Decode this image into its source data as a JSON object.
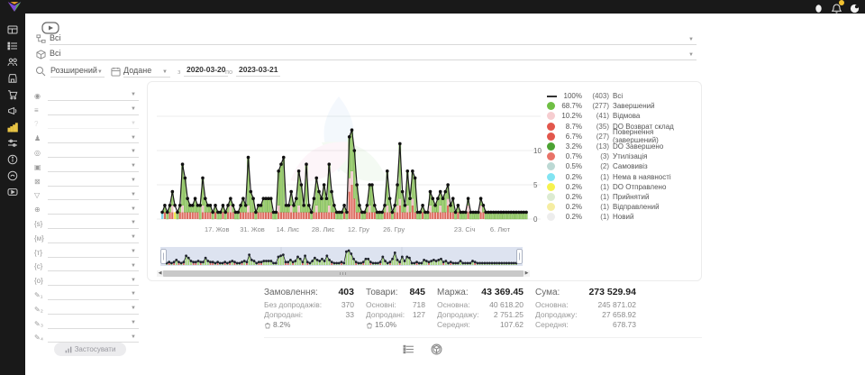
{
  "topbar": {
    "icons": [
      {
        "name": "user"
      },
      {
        "name": "notifications",
        "badge_color": "#f2c230"
      },
      {
        "name": "account"
      }
    ]
  },
  "sidebar": {
    "items": [
      {
        "name": "dashboard",
        "active": false
      },
      {
        "name": "orders",
        "active": false
      },
      {
        "name": "customers",
        "active": false
      },
      {
        "name": "shop",
        "active": false
      },
      {
        "name": "cart",
        "active": false
      },
      {
        "name": "marketing",
        "active": false
      },
      {
        "name": "analytics",
        "active": true
      },
      {
        "name": "settings",
        "active": false
      },
      {
        "name": "info",
        "active": false
      },
      {
        "name": "support",
        "active": false
      },
      {
        "name": "video",
        "active": false
      }
    ],
    "active_color": "#e8c445"
  },
  "filters": {
    "group_value": "Всі",
    "product_value": "Всі",
    "search_mode": "Розширений",
    "date_field": "Додане",
    "from_label": "з",
    "date_from": "2020-03-20",
    "to_label": "по",
    "date_to": "2023-03-21"
  },
  "side_filters": {
    "apply_label": "Застосувати",
    "rows": [
      {
        "name": "status-filter",
        "glyph": "◉",
        "muted": false
      },
      {
        "name": "stage-filter",
        "glyph": "≡",
        "muted": false
      },
      {
        "name": "help-filter",
        "glyph": "?",
        "muted": true
      },
      {
        "name": "manager-filter",
        "glyph": "♟",
        "muted": false
      },
      {
        "name": "payment-filter",
        "glyph": "◎",
        "muted": false
      },
      {
        "name": "package-filter",
        "glyph": "▣",
        "muted": false
      },
      {
        "name": "image-filter",
        "glyph": "⊠",
        "muted": false
      },
      {
        "name": "funnel-filter",
        "glyph": "▽",
        "muted": false
      },
      {
        "name": "region-filter",
        "glyph": "⊕",
        "muted": false
      },
      {
        "name": "source-s-filter",
        "glyph": "{s}",
        "muted": false
      },
      {
        "name": "source-m-filter",
        "glyph": "{м}",
        "muted": false
      },
      {
        "name": "source-t-filter",
        "glyph": "{т}",
        "muted": false
      },
      {
        "name": "source-c-filter",
        "glyph": "{с}",
        "muted": false
      },
      {
        "name": "source-o-filter",
        "glyph": "{о}",
        "muted": false
      },
      {
        "name": "custom-field-1-filter",
        "glyph": "✎₁",
        "muted": false
      },
      {
        "name": "custom-field-2-filter",
        "glyph": "✎₂",
        "muted": false
      },
      {
        "name": "custom-field-3-filter",
        "glyph": "✎₃",
        "muted": false
      },
      {
        "name": "custom-field-4-filter",
        "glyph": "✎₄",
        "muted": false
      }
    ]
  },
  "chart_data": {
    "type": "bar+line",
    "ylim": [
      0,
      15
    ],
    "yticks": [
      0,
      5,
      10
    ],
    "y_axis_side": "right",
    "grid": true,
    "legend_position": "right",
    "xticks": [
      {
        "day": 22,
        "label": "17. Жов"
      },
      {
        "day": 36,
        "label": "31. Жов"
      },
      {
        "day": 50,
        "label": "14. Лис"
      },
      {
        "day": 64,
        "label": "28. Лис"
      },
      {
        "day": 78,
        "label": "12. Гру"
      },
      {
        "day": 92,
        "label": "26. Гру"
      },
      {
        "day": 120,
        "label": "23. Січ"
      },
      {
        "day": 134,
        "label": "6. Лют"
      }
    ],
    "series_note": "line = total orders per day (Всі); stacked bars = orders by status (green Завершений, red повернення/возврат, pink Відмова)",
    "totals": [
      1,
      2,
      1,
      2,
      4,
      2,
      1,
      2,
      8,
      6,
      3,
      2,
      2,
      3,
      2,
      2,
      6,
      3,
      2,
      2,
      1,
      2,
      1,
      1,
      2,
      1,
      2,
      3,
      2,
      1,
      1,
      2,
      3,
      2,
      9,
      4,
      3,
      1,
      2,
      2,
      3,
      3,
      3,
      3,
      1,
      1,
      7,
      8,
      9,
      2,
      2,
      4,
      2,
      3,
      7,
      5,
      2,
      8,
      2,
      1,
      3,
      6,
      4,
      3,
      5,
      3,
      8,
      4,
      2,
      1,
      1,
      1,
      2,
      1,
      12,
      13,
      10,
      5,
      2,
      1,
      1,
      2,
      5,
      5,
      2,
      1,
      1,
      1,
      2,
      7,
      3,
      1,
      2,
      5,
      11,
      4,
      2,
      7,
      3,
      7,
      6,
      1,
      1,
      2,
      1,
      1,
      4,
      3,
      2,
      3,
      4,
      3,
      4,
      5,
      2,
      3,
      1,
      2,
      1,
      1,
      1,
      3,
      1,
      1,
      1,
      1,
      3,
      2,
      1,
      1,
      1,
      1,
      1,
      1,
      1,
      1,
      1,
      1,
      1,
      1,
      1,
      1,
      1,
      1,
      1
    ],
    "red": [
      0,
      1,
      0,
      1,
      1,
      1,
      0,
      1,
      1,
      1,
      1,
      1,
      1,
      1,
      1,
      0,
      1,
      1,
      1,
      1,
      0,
      1,
      0,
      0,
      1,
      0,
      1,
      1,
      1,
      0,
      0,
      1,
      1,
      1,
      1,
      1,
      1,
      0,
      1,
      1,
      1,
      1,
      1,
      1,
      0,
      0,
      1,
      1,
      1,
      1,
      1,
      1,
      1,
      1,
      1,
      1,
      1,
      1,
      1,
      0,
      1,
      1,
      1,
      1,
      1,
      1,
      1,
      1,
      1,
      0,
      0,
      0,
      1,
      0,
      4,
      5,
      3,
      1,
      1,
      0,
      0,
      1,
      1,
      1,
      1,
      0,
      0,
      0,
      1,
      1,
      1,
      0,
      1,
      1,
      2,
      1,
      1,
      1,
      1,
      2,
      1,
      0,
      0,
      1,
      0,
      0,
      1,
      1,
      1,
      1,
      1,
      1,
      1,
      2,
      1,
      1,
      0,
      1,
      0,
      0,
      0,
      1,
      0,
      0,
      0,
      0,
      1,
      1,
      0,
      0,
      0,
      0,
      0,
      0,
      0,
      0,
      0,
      0,
      0,
      0,
      0,
      0,
      0,
      0,
      0
    ],
    "pink": [
      0,
      0,
      0,
      0,
      1,
      0,
      0,
      0,
      1,
      0,
      0,
      0,
      0,
      0,
      0,
      0,
      1,
      0,
      0,
      0,
      0,
      0,
      0,
      0,
      0,
      0,
      0,
      1,
      0,
      0,
      0,
      0,
      0,
      0,
      1,
      0,
      0,
      0,
      0,
      0,
      0,
      0,
      0,
      0,
      0,
      0,
      1,
      0,
      0,
      0,
      0,
      1,
      0,
      0,
      1,
      0,
      0,
      0,
      0,
      0,
      0,
      1,
      0,
      0,
      0,
      0,
      1,
      0,
      0,
      0,
      0,
      0,
      0,
      0,
      2,
      2,
      0,
      0,
      0,
      0,
      0,
      0,
      1,
      0,
      0,
      0,
      0,
      0,
      0,
      1,
      0,
      0,
      0,
      1,
      1,
      0,
      0,
      1,
      0,
      1,
      0,
      0,
      0,
      0,
      0,
      0,
      1,
      0,
      0,
      0,
      1,
      0,
      0,
      1,
      0,
      0,
      0,
      0,
      0,
      0,
      0,
      1,
      0,
      0,
      0,
      0,
      1,
      0,
      0,
      0,
      0,
      0,
      0,
      0,
      0,
      0,
      0,
      0,
      0,
      0,
      0,
      0,
      0,
      0,
      0
    ],
    "special_bars": [
      {
        "day": 0,
        "color": "#7fd8e8"
      },
      {
        "day": 5,
        "color": "#f4e84b"
      }
    ],
    "colors": {
      "bar_green": "#a3d375",
      "bar_green_stroke": "#69a845",
      "bar_red": "#dd6b5f",
      "bar_pink": "#f2c6c9",
      "line": "#1c1c1c",
      "grid": "#ededed",
      "navigator_bg": "#dde3f0",
      "navigator_ink": "#20242e"
    },
    "legend": [
      {
        "pct": "100%",
        "count": "(403)",
        "label": "Всі",
        "color": "#333333",
        "shape": "line"
      },
      {
        "pct": "68.7%",
        "count": "(277)",
        "label": "Завершений",
        "color": "#6fbf44",
        "shape": "dot"
      },
      {
        "pct": "10.2%",
        "count": "(41)",
        "label": "Відмова",
        "color": "#f6cdd0",
        "shape": "dot"
      },
      {
        "pct": "8.7%",
        "count": "(35)",
        "label": "DO Возврат склад",
        "color": "#e2574c",
        "shape": "dot"
      },
      {
        "pct": "6.7%",
        "count": "(27)",
        "label": "Повернення (завершений)",
        "color": "#e2574c",
        "shape": "dot"
      },
      {
        "pct": "3.2%",
        "count": "(13)",
        "label": "DO Завершено",
        "color": "#4ca233",
        "shape": "dot"
      },
      {
        "pct": "0.7%",
        "count": "(3)",
        "label": "Утилізація",
        "color": "#e87368",
        "shape": "dot"
      },
      {
        "pct": "0.5%",
        "count": "(2)",
        "label": "Самовивіз",
        "color": "#bcd9d4",
        "shape": "dot"
      },
      {
        "pct": "0.2%",
        "count": "(1)",
        "label": "Нема в наявності",
        "color": "#82e4f2",
        "shape": "dot"
      },
      {
        "pct": "0.2%",
        "count": "(1)",
        "label": "DO Отправлено",
        "color": "#f6f24e",
        "shape": "dot"
      },
      {
        "pct": "0.2%",
        "count": "(1)",
        "label": "Прийнятий",
        "color": "#dcebd2",
        "shape": "dot"
      },
      {
        "pct": "0.2%",
        "count": "(1)",
        "label": "Відправлений",
        "color": "#f5eda2",
        "shape": "dot"
      },
      {
        "pct": "0.2%",
        "count": "(1)",
        "label": "Новий",
        "color": "#ededed",
        "shape": "dot"
      }
    ]
  },
  "stats": {
    "columns": [
      {
        "title": "Замовлення:",
        "value": "403",
        "rows": [
          [
            "Без допродажів:",
            "370"
          ],
          [
            "Допродані:",
            "33"
          ]
        ],
        "badge": "8.2%"
      },
      {
        "title": "Товари:",
        "value": "845",
        "rows": [
          [
            "Основні:",
            "718"
          ],
          [
            "Допродані:",
            "127"
          ]
        ],
        "badge": "15.0%"
      },
      {
        "title": "Маржа:",
        "value": "43 369.45",
        "rows": [
          [
            "Основна:",
            "40 618.20"
          ],
          [
            "Допродажу:",
            "2 751.25"
          ],
          [
            "Середня:",
            "107.62"
          ]
        ],
        "badge": null
      },
      {
        "title": "Сума:",
        "value": "273 529.94",
        "rows": [
          [
            "Основна:",
            "245 871.02"
          ],
          [
            "Допродажу:",
            "27 658.92"
          ],
          [
            "Середня:",
            "678.73"
          ]
        ],
        "badge": null
      }
    ]
  },
  "footer": {
    "buttons": [
      {
        "name": "list-view"
      },
      {
        "name": "package-view"
      }
    ]
  }
}
